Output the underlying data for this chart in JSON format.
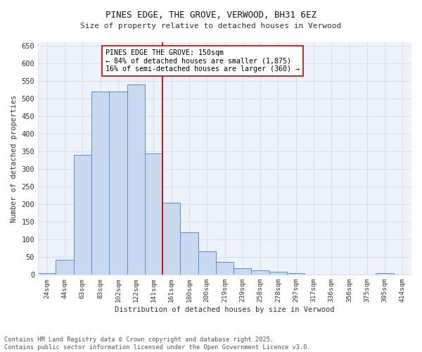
{
  "title": "PINES EDGE, THE GROVE, VERWOOD, BH31 6EZ",
  "subtitle": "Size of property relative to detached houses in Verwood",
  "xlabel": "Distribution of detached houses by size in Verwood",
  "ylabel": "Number of detached properties",
  "categories": [
    "24sqm",
    "44sqm",
    "63sqm",
    "83sqm",
    "102sqm",
    "122sqm",
    "141sqm",
    "161sqm",
    "180sqm",
    "200sqm",
    "219sqm",
    "239sqm",
    "258sqm",
    "278sqm",
    "297sqm",
    "317sqm",
    "336sqm",
    "356sqm",
    "375sqm",
    "395sqm",
    "414sqm"
  ],
  "bar_values": [
    5,
    42,
    340,
    520,
    520,
    540,
    345,
    205,
    120,
    67,
    37,
    18,
    13,
    8,
    5,
    0,
    0,
    0,
    0,
    5,
    0
  ],
  "bar_color": "#c9d9f0",
  "bar_edge_color": "#5b8ec8",
  "background_color": "#eef2fb",
  "grid_color": "#d8dff0",
  "vline_color": "#cc0000",
  "annotation_text": "PINES EDGE THE GROVE: 150sqm\n← 84% of detached houses are smaller (1,875)\n16% of semi-detached houses are larger (360) →",
  "annotation_box_color": "#ffffff",
  "annotation_box_edge": "#cc0000",
  "footer_text": "Contains HM Land Registry data © Crown copyright and database right 2025.\nContains public sector information licensed under the Open Government Licence v3.0.",
  "ylim": [
    0,
    660
  ],
  "yticks": [
    0,
    50,
    100,
    150,
    200,
    250,
    300,
    350,
    400,
    450,
    500,
    550,
    600,
    650
  ]
}
